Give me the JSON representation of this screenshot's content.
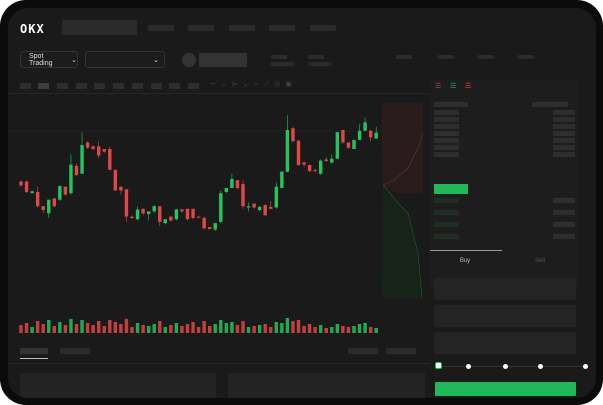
{
  "header": {
    "logo": "OKX"
  },
  "toolbar": {
    "market_dropdown": "Spot Trading",
    "chevron": "chevron-down-icon"
  },
  "trade": {
    "tabs": [
      "Buy",
      "Sell"
    ],
    "active_tab": "Buy",
    "slider_fraction": 0
  },
  "colors": {
    "up": "#22c55e",
    "down": "#e04848",
    "accent": "#22b85a",
    "background": "#1a1a1a"
  },
  "chart_data": {
    "type": "candlestick",
    "candles": [
      [
        45,
        42,
        46,
        41
      ],
      [
        45,
        37,
        46,
        36
      ],
      [
        36,
        37.5,
        38,
        36
      ],
      [
        37,
        26,
        41,
        25
      ],
      [
        26,
        23,
        26,
        21
      ],
      [
        20.5,
        31,
        31,
        17
      ],
      [
        32,
        26,
        32,
        25
      ],
      [
        31,
        41.5,
        42,
        30
      ],
      [
        41,
        35,
        41,
        34
      ],
      [
        36,
        58,
        66,
        35
      ],
      [
        57,
        50,
        59,
        49
      ],
      [
        51,
        73,
        83,
        51
      ],
      [
        75,
        71,
        76,
        70
      ],
      [
        72,
        70,
        73,
        69
      ],
      [
        72,
        65,
        76,
        63
      ],
      [
        70,
        68,
        70,
        67
      ],
      [
        70,
        54,
        72,
        54
      ],
      [
        54,
        38,
        54,
        38
      ],
      [
        41,
        38,
        41,
        35
      ],
      [
        39,
        18,
        39,
        14
      ],
      [
        18,
        17,
        19,
        16
      ],
      [
        16,
        23.5,
        26,
        15
      ],
      [
        24,
        20.5,
        24,
        19
      ],
      [
        20,
        22,
        22,
        15
      ],
      [
        22,
        26,
        27,
        21
      ],
      [
        26,
        14,
        26,
        11
      ],
      [
        13,
        16,
        16,
        12
      ],
      [
        18,
        15,
        18,
        14
      ],
      [
        16,
        23.5,
        24,
        15
      ],
      [
        23.5,
        22,
        24,
        21
      ],
      [
        24,
        16,
        24,
        15
      ],
      [
        24,
        17,
        24,
        16
      ],
      [
        18,
        17.5,
        18,
        17
      ],
      [
        17,
        9,
        18,
        8
      ],
      [
        10,
        8.5,
        10,
        8
      ],
      [
        8,
        13,
        13,
        7
      ],
      [
        14,
        36,
        38,
        13
      ],
      [
        37,
        40,
        40,
        36
      ],
      [
        40,
        47,
        51,
        40
      ],
      [
        46,
        40,
        46,
        39
      ],
      [
        43,
        26,
        46,
        24
      ],
      [
        25,
        26,
        29,
        22
      ],
      [
        28,
        25,
        28,
        24
      ],
      [
        23,
        25.5,
        26,
        22
      ],
      [
        27,
        19,
        27,
        19
      ],
      [
        25.5,
        24,
        30,
        24
      ],
      [
        25,
        41,
        44,
        24
      ],
      [
        40,
        52.5,
        53,
        40
      ],
      [
        52.5,
        84.6,
        96,
        52
      ],
      [
        86,
        76,
        87,
        75
      ],
      [
        76.4,
        57.7,
        77,
        57
      ],
      [
        59.7,
        58,
        60,
        56
      ],
      [
        57.7,
        53,
        58,
        52
      ],
      [
        53.8,
        53,
        55,
        52
      ],
      [
        51,
        61,
        62,
        50
      ],
      [
        62,
        60.8,
        64,
        60
      ],
      [
        59.5,
        62.5,
        66,
        59
      ],
      [
        62.5,
        83,
        83,
        62
      ],
      [
        84.6,
        75,
        85,
        74
      ],
      [
        75,
        71,
        75,
        70
      ],
      [
        70,
        77,
        77,
        70
      ],
      [
        77,
        84,
        89,
        77
      ],
      [
        84,
        90.5,
        94,
        84
      ],
      [
        84,
        79,
        85,
        76
      ],
      [
        78,
        82.6,
        87,
        78
      ]
    ],
    "volume": [
      8,
      10,
      6,
      12,
      9,
      13,
      7,
      11,
      8,
      14,
      9,
      13,
      10,
      8,
      12,
      7,
      13,
      11,
      9,
      14,
      6,
      10,
      8,
      7,
      9,
      12,
      6,
      8,
      10,
      7,
      9,
      11,
      6,
      12,
      7,
      9,
      13,
      10,
      11,
      8,
      12,
      6,
      7,
      8,
      9,
      6,
      11,
      10,
      15,
      12,
      13,
      7,
      9,
      6,
      8,
      5,
      6,
      9,
      7,
      6,
      7,
      9,
      10,
      6,
      5
    ]
  }
}
